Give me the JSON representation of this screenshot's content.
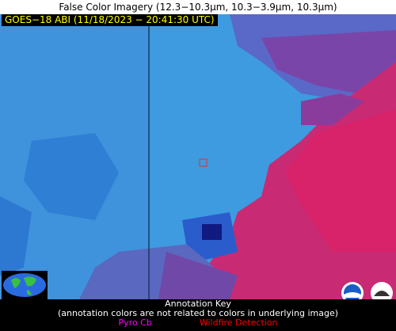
{
  "title": "False Color Imagery (12.3−10.3µm, 10.3−3.9µm, 10.3µm)",
  "satellite_label": "GOES−18 ABI (11/18/2023 − 20:41:30 UTC)",
  "annotation_key": {
    "heading": "Annotation Key",
    "note": "(annotation colors are not related to colors in underlying image)",
    "items": [
      "Pyro Cb",
      "Wildfire Detection"
    ]
  }
}
